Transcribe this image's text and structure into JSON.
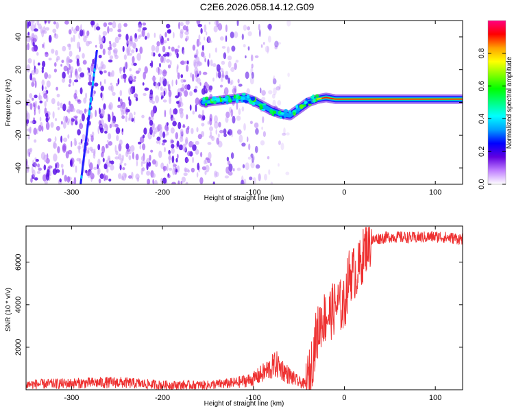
{
  "title": "C2E6.2026.058.14.12.G09",
  "chart_data": [
    {
      "type": "heatmap",
      "xlabel": "Height of straight line (km)",
      "ylabel": "Frequency (Hz)",
      "xlim": [
        -350,
        130
      ],
      "ylim": [
        -50,
        50
      ],
      "xticks": [
        -300,
        -200,
        -100,
        0,
        100
      ],
      "yticks": [
        -40,
        -20,
        0,
        20,
        40
      ],
      "colorbar": {
        "label": "Normalized spectral amplitude",
        "range": [
          0,
          1
        ],
        "ticks": [
          0.0,
          0.2,
          0.4,
          0.6,
          0.8
        ],
        "colors": [
          "#ffffff",
          "#c080ff",
          "#6000e0",
          "#0000ff",
          "#00a0ff",
          "#00ffff",
          "#00ff80",
          "#00ff00",
          "#80ff00",
          "#ffff00",
          "#ffa000",
          "#ff0000",
          "#ff0080"
        ]
      },
      "features": {
        "noise_band_x": [
          -350,
          -60
        ],
        "noise_fade_x": [
          -160,
          -60
        ],
        "tilted_streak": {
          "x": [
            -290,
            -272
          ],
          "y": [
            -50,
            32
          ]
        },
        "signal_trace": {
          "x": [
            -155,
            -140,
            -125,
            -110,
            -100,
            -90,
            -80,
            -70,
            -60,
            -50,
            -40,
            -30,
            -20,
            -10,
            0,
            20,
            40,
            60,
            80,
            100,
            130
          ],
          "y": [
            0,
            1,
            2,
            3,
            1,
            -2,
            -5,
            -7,
            -8,
            -4,
            0,
            2,
            3,
            2,
            2,
            2,
            2,
            2,
            2,
            2,
            2
          ]
        }
      }
    },
    {
      "type": "line",
      "xlabel": "Height of straight line (km)",
      "ylabel": "SNR (10 * v/v)",
      "xlim": [
        -350,
        130
      ],
      "ylim": [
        0,
        7700
      ],
      "xticks": [
        -300,
        -200,
        -100,
        0,
        100
      ],
      "yticks": [
        2000,
        4000,
        6000
      ],
      "series": [
        {
          "name": "SNR",
          "color": "#ee3030",
          "x": [
            -350,
            -300,
            -250,
            -200,
            -150,
            -120,
            -100,
            -85,
            -75,
            -60,
            -50,
            -42,
            -38,
            -32,
            -25,
            -15,
            -8,
            0,
            5,
            15,
            25,
            35,
            50,
            75,
            100,
            130
          ],
          "y": [
            250,
            300,
            350,
            220,
            220,
            320,
            500,
            900,
            1200,
            650,
            350,
            250,
            700,
            2300,
            3300,
            3600,
            4000,
            3900,
            5400,
            5600,
            6900,
            7100,
            7200,
            7150,
            7200,
            7100
          ]
        }
      ]
    }
  ]
}
